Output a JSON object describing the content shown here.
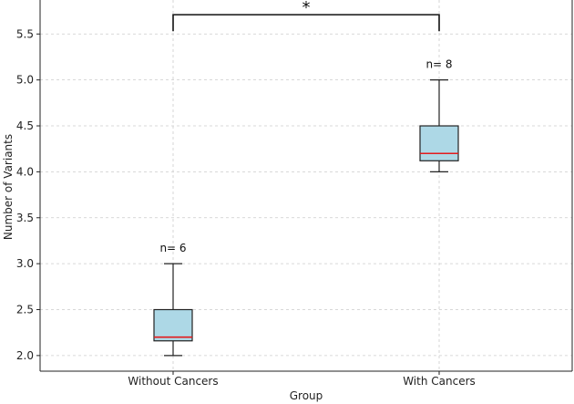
{
  "chart_data": {
    "type": "box",
    "title": "",
    "xlabel": "Group",
    "ylabel": "Number of Variants",
    "ylim": [
      1.83,
      5.87
    ],
    "yticks": [
      2.0,
      2.5,
      3.0,
      3.5,
      4.0,
      4.5,
      5.0,
      5.5
    ],
    "ytick_labels": [
      "2.0",
      "2.5",
      "3.0",
      "3.5",
      "4.0",
      "4.5",
      "5.0",
      "5.5"
    ],
    "grid": true,
    "categories": [
      "Without Cancers",
      "With Cancers"
    ],
    "boxes": [
      {
        "category": "Without Cancers",
        "min": 2.0,
        "q1": 2.16,
        "median": 2.2,
        "q3": 2.5,
        "max": 3.0,
        "n_label": "n= 6"
      },
      {
        "category": "With Cancers",
        "min": 4.0,
        "q1": 4.12,
        "median": 4.2,
        "q3": 4.5,
        "max": 5.0,
        "n_label": "n= 8"
      }
    ],
    "significance": {
      "label": "*",
      "between": [
        "Without Cancers",
        "With Cancers"
      ],
      "bracket_y": 5.7,
      "bracket_top": 5.71
    },
    "colors": {
      "box_fill": "#add8e6",
      "median": "#e41a1c",
      "line": "#222222",
      "grid": "#cccccc"
    }
  }
}
